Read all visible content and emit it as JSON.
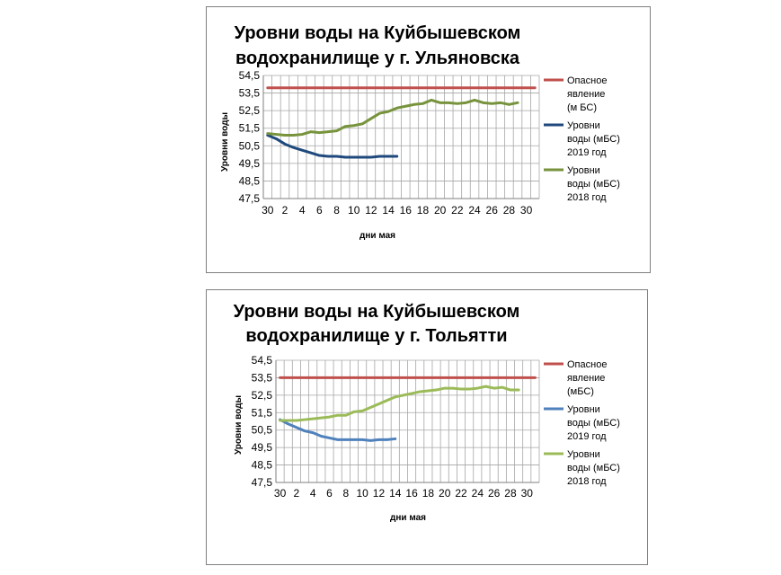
{
  "chart_data": [
    {
      "type": "line",
      "title": "Уровни воды на Куйбышевском",
      "subtitle": "водохранилище у г. Ульяновска",
      "xlabel": "дни  мая",
      "ylabel": "Уровни воды",
      "ylim": [
        47.5,
        54.5
      ],
      "yticks": [
        "54,5",
        "53,5",
        "52,5",
        "51,5",
        "50,5",
        "49,5",
        "48,5",
        "47,5"
      ],
      "xticks": [
        "30",
        "2",
        "4",
        "6",
        "8",
        "10",
        "12",
        "14",
        "16",
        "18",
        "20",
        "22",
        "24",
        "26",
        "28",
        "30"
      ],
      "grid": true,
      "legend": "right",
      "series": [
        {
          "legend": [
            "Опасное",
            "явление",
            "(м БС)"
          ],
          "color": "#c0504d",
          "values": [
            53.8,
            53.8,
            53.8,
            53.8,
            53.8,
            53.8,
            53.8,
            53.8,
            53.8,
            53.8,
            53.8,
            53.8,
            53.8,
            53.8,
            53.8,
            53.8,
            53.8,
            53.8,
            53.8,
            53.8,
            53.8,
            53.8,
            53.8,
            53.8,
            53.8,
            53.8,
            53.8,
            53.8,
            53.8,
            53.8,
            53.8,
            53.8
          ]
        },
        {
          "legend": [
            "Уровни",
            "воды (мБС)",
            "2019 год"
          ],
          "color": "#1f497d",
          "values": [
            51.1,
            50.9,
            50.6,
            50.4,
            50.25,
            50.1,
            49.95,
            49.9,
            49.9,
            49.85,
            49.85,
            49.85,
            49.85,
            49.9,
            49.9,
            49.9
          ]
        },
        {
          "legend": [
            "Уровни",
            "воды (мБС)",
            "2018 год"
          ],
          "color": "#77933c",
          "values": [
            51.2,
            51.15,
            51.1,
            51.1,
            51.15,
            51.3,
            51.25,
            51.3,
            51.35,
            51.6,
            51.65,
            51.75,
            52.05,
            52.35,
            52.45,
            52.65,
            52.75,
            52.85,
            52.9,
            53.1,
            52.95,
            52.95,
            52.9,
            52.95,
            53.1,
            52.95,
            52.9,
            52.95,
            52.85,
            52.95
          ]
        }
      ]
    },
    {
      "type": "line",
      "title": "Уровни воды на Куйбышевском",
      "subtitle": "водохранилище у г. Тольятти",
      "xlabel": "дни  мая",
      "ylabel": "Уровни воды",
      "ylim": [
        47.5,
        54.5
      ],
      "yticks": [
        "54,5",
        "53,5",
        "52,5",
        "51,5",
        "50,5",
        "49,5",
        "48,5",
        "47,5"
      ],
      "xticks": [
        "30",
        "2",
        "4",
        "6",
        "8",
        "10",
        "12",
        "14",
        "16",
        "18",
        "20",
        "22",
        "24",
        "26",
        "28",
        "30"
      ],
      "grid": true,
      "legend": "right",
      "series": [
        {
          "legend": [
            "Опасное",
            "явление",
            "(мБС)"
          ],
          "color": "#c0504d",
          "values": [
            53.5,
            53.5,
            53.5,
            53.5,
            53.5,
            53.5,
            53.5,
            53.5,
            53.5,
            53.5,
            53.5,
            53.5,
            53.5,
            53.5,
            53.5,
            53.5,
            53.5,
            53.5,
            53.5,
            53.5,
            53.5,
            53.5,
            53.5,
            53.5,
            53.5,
            53.5,
            53.5,
            53.5,
            53.5,
            53.5,
            53.5,
            53.5
          ]
        },
        {
          "legend": [
            "Уровни",
            "воды (мБС)",
            "2019 год"
          ],
          "color": "#4f81bd",
          "values": [
            51.1,
            50.85,
            50.65,
            50.45,
            50.35,
            50.15,
            50.05,
            49.95,
            49.95,
            49.95,
            49.95,
            49.9,
            49.95,
            49.95,
            50.0
          ]
        },
        {
          "legend": [
            "Уровни",
            "воды (мБС)",
            "2018 год"
          ],
          "color": "#9bbb59",
          "values": [
            51.05,
            51.05,
            51.05,
            51.1,
            51.15,
            51.2,
            51.25,
            51.35,
            51.35,
            51.55,
            51.6,
            51.8,
            52.0,
            52.2,
            52.4,
            52.5,
            52.6,
            52.7,
            52.75,
            52.8,
            52.9,
            52.9,
            52.85,
            52.85,
            52.9,
            53.0,
            52.9,
            52.95,
            52.8,
            52.8
          ]
        }
      ]
    }
  ]
}
